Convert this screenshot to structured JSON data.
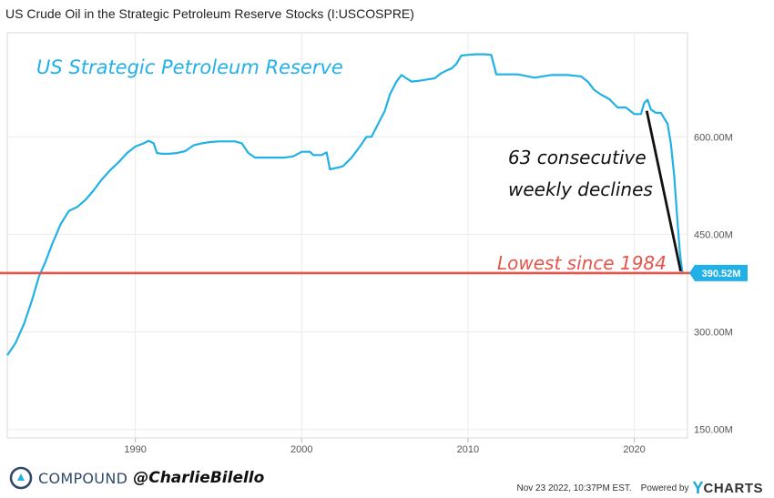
{
  "chart_data": {
    "type": "line",
    "title": "US Crude Oil in the Strategic Petroleum Reserve Stocks (I:USCOSPRE)",
    "annotations": {
      "series_label": "US Strategic Petroleum Reserve",
      "declines_line1": "63 consecutive",
      "declines_line2": "weekly declines",
      "lowest_label": "Lowest since 1984"
    },
    "last_value_label": "390.52M",
    "reference_line": {
      "value": 390.52,
      "color": "#e8534a"
    },
    "x_ticks": [
      1990,
      2000,
      2010,
      2020
    ],
    "y_ticks": [
      {
        "value": 150,
        "label": "150.00M"
      },
      {
        "value": 300,
        "label": "300.00M"
      },
      {
        "value": 450,
        "label": "450.00M"
      },
      {
        "value": 600,
        "label": "600.00M"
      }
    ],
    "xlim": [
      1982.3,
      2023.2
    ],
    "ylim": [
      137,
      760
    ],
    "grid": true,
    "series": [
      {
        "color": "#22b1e6",
        "points": [
          [
            1982.3,
            264
          ],
          [
            1982.8,
            283
          ],
          [
            1983.3,
            312
          ],
          [
            1983.8,
            350
          ],
          [
            1984.2,
            385
          ],
          [
            1984.6,
            408
          ],
          [
            1985.0,
            435
          ],
          [
            1985.5,
            465
          ],
          [
            1986.0,
            486
          ],
          [
            1986.5,
            492
          ],
          [
            1987.0,
            503
          ],
          [
            1987.5,
            518
          ],
          [
            1988.0,
            535
          ],
          [
            1988.5,
            549
          ],
          [
            1989.0,
            561
          ],
          [
            1989.5,
            575
          ],
          [
            1990.0,
            585
          ],
          [
            1990.5,
            590
          ],
          [
            1990.8,
            594
          ],
          [
            1991.1,
            590
          ],
          [
            1991.3,
            575
          ],
          [
            1991.6,
            574
          ],
          [
            1992.0,
            574
          ],
          [
            1992.5,
            575
          ],
          [
            1993.0,
            578
          ],
          [
            1993.5,
            587
          ],
          [
            1994.0,
            590
          ],
          [
            1994.5,
            592
          ],
          [
            1995.0,
            593
          ],
          [
            1995.5,
            593
          ],
          [
            1996.0,
            593
          ],
          [
            1996.4,
            590
          ],
          [
            1996.8,
            575
          ],
          [
            1997.2,
            568
          ],
          [
            1998.0,
            568
          ],
          [
            1999.0,
            568
          ],
          [
            1999.5,
            570
          ],
          [
            2000.0,
            577
          ],
          [
            2000.5,
            577
          ],
          [
            2000.7,
            572
          ],
          [
            2001.2,
            572
          ],
          [
            2001.5,
            576
          ],
          [
            2001.7,
            550
          ],
          [
            2002.2,
            553
          ],
          [
            2002.5,
            555
          ],
          [
            2003.0,
            568
          ],
          [
            2003.5,
            585
          ],
          [
            2003.9,
            600
          ],
          [
            2004.2,
            600
          ],
          [
            2004.6,
            620
          ],
          [
            2005.0,
            640
          ],
          [
            2005.3,
            665
          ],
          [
            2005.7,
            685
          ],
          [
            2006.0,
            695
          ],
          [
            2006.3,
            690
          ],
          [
            2006.6,
            685
          ],
          [
            2007.0,
            686
          ],
          [
            2007.5,
            688
          ],
          [
            2008.0,
            690
          ],
          [
            2008.4,
            698
          ],
          [
            2008.8,
            703
          ],
          [
            2009.0,
            705
          ],
          [
            2009.3,
            712
          ],
          [
            2009.6,
            725
          ],
          [
            2010.0,
            726
          ],
          [
            2010.5,
            727
          ],
          [
            2011.0,
            727
          ],
          [
            2011.4,
            726
          ],
          [
            2011.7,
            696
          ],
          [
            2012.0,
            696
          ],
          [
            2013.0,
            696
          ],
          [
            2014.0,
            691
          ],
          [
            2015.0,
            695
          ],
          [
            2016.0,
            695
          ],
          [
            2016.8,
            693
          ],
          [
            2017.2,
            685
          ],
          [
            2017.6,
            672
          ],
          [
            2018.0,
            665
          ],
          [
            2018.5,
            658
          ],
          [
            2019.0,
            645
          ],
          [
            2019.5,
            645
          ],
          [
            2020.0,
            635
          ],
          [
            2020.4,
            635
          ],
          [
            2020.6,
            652
          ],
          [
            2020.8,
            657
          ],
          [
            2021.0,
            642
          ],
          [
            2021.3,
            637
          ],
          [
            2021.6,
            637
          ],
          [
            2022.0,
            620
          ],
          [
            2022.2,
            590
          ],
          [
            2022.4,
            540
          ],
          [
            2022.6,
            470
          ],
          [
            2022.75,
            420
          ],
          [
            2022.85,
            400
          ],
          [
            2022.9,
            390.52
          ]
        ]
      }
    ]
  },
  "footer": {
    "brand": "COMPOUND",
    "handle": "@CharlieBilello",
    "timestamp": "Nov 23 2022, 10:37PM EST.",
    "powered_by": "Powered by",
    "logo_y": "Y",
    "logo_rest": "CHARTS"
  }
}
